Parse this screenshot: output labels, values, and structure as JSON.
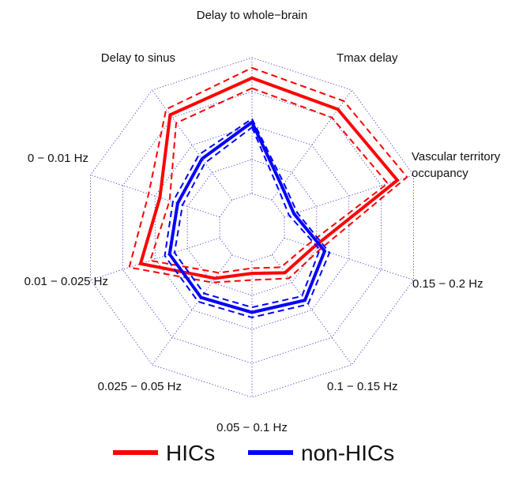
{
  "chart_data": {
    "type": "radar",
    "axes": [
      "Delay to whole−brain",
      "Tmax delay",
      "Vascular territory\noccupancy",
      "0.15 − 0.2 Hz",
      "0.1 − 0.15 Hz",
      "0.05 − 0.1 Hz",
      "0.025 − 0.05 Hz",
      "0.01 − 0.025 Hz",
      "0 − 0.01 Hz",
      "Delay to sinus"
    ],
    "range": [
      0,
      1
    ],
    "rings": 5,
    "grid": true,
    "legend_position": "bottom",
    "series": [
      {
        "name": "HICs",
        "color": "#ff0000",
        "values": [
          0.88,
          0.86,
          0.9,
          0.38,
          0.33,
          0.27,
          0.37,
          0.69,
          0.57,
          0.82
        ],
        "upper": [
          0.94,
          0.92,
          0.96,
          0.42,
          0.37,
          0.31,
          0.4,
          0.76,
          0.64,
          0.86
        ],
        "lower": [
          0.82,
          0.8,
          0.84,
          0.34,
          0.29,
          0.24,
          0.33,
          0.63,
          0.51,
          0.76
        ]
      },
      {
        "name": "non-HICs",
        "color": "#0000ff",
        "values": [
          0.62,
          0.3,
          0.26,
          0.45,
          0.53,
          0.5,
          0.51,
          0.51,
          0.46,
          0.5
        ],
        "upper": [
          0.64,
          0.32,
          0.28,
          0.48,
          0.56,
          0.53,
          0.54,
          0.54,
          0.49,
          0.53
        ],
        "lower": [
          0.59,
          0.27,
          0.23,
          0.42,
          0.5,
          0.47,
          0.48,
          0.48,
          0.43,
          0.47
        ]
      }
    ]
  }
}
